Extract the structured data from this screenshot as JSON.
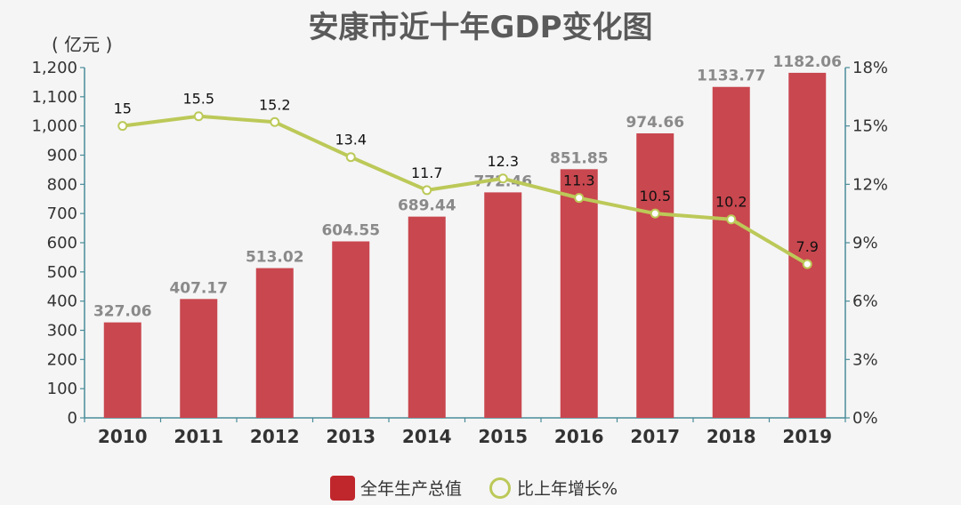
{
  "chart_data": {
    "type": "bar",
    "title": "安康市近十年GDP变化图",
    "unit_label": "( 亿元 )",
    "categories": [
      "2010",
      "2011",
      "2012",
      "2013",
      "2014",
      "2015",
      "2016",
      "2017",
      "2018",
      "2019"
    ],
    "series": [
      {
        "name": "全年生产总值",
        "type": "bar",
        "axis": "left",
        "color": "#c9474f",
        "values": [
          327.06,
          407.17,
          513.02,
          604.55,
          689.44,
          772.46,
          851.85,
          974.66,
          1133.77,
          1182.06
        ],
        "labels": [
          "327.06",
          "407.17",
          "513.02",
          "604.55",
          "689.44",
          "772.46",
          "851.85",
          "974.66",
          "1133.77",
          "1182.06"
        ]
      },
      {
        "name": "比上年增长%",
        "type": "line",
        "axis": "right",
        "color": "#bcc958",
        "values": [
          15,
          15.5,
          15.2,
          13.4,
          11.7,
          12.3,
          11.3,
          10.5,
          10.2,
          7.9
        ],
        "labels": [
          "15",
          "15.5",
          "15.2",
          "13.4",
          "11.7",
          "12.3",
          "11.3",
          "10.5",
          "10.2",
          "7.9"
        ]
      }
    ],
    "y_left": {
      "range": [
        0,
        1200
      ],
      "ticks": [
        0,
        100,
        200,
        300,
        400,
        500,
        600,
        700,
        800,
        900,
        1000,
        1100,
        1200
      ],
      "tick_labels": [
        "0",
        "100",
        "200",
        "300",
        "400",
        "500",
        "600",
        "700",
        "800",
        "900",
        "1,000",
        "1,100",
        "1,200"
      ]
    },
    "y_right": {
      "range": [
        0,
        18
      ],
      "ticks": [
        0,
        3,
        6,
        9,
        12,
        15,
        18
      ],
      "tick_labels": [
        "0%",
        "3%",
        "6%",
        "9%",
        "12%",
        "15%",
        "18%"
      ]
    },
    "grid": false,
    "legend_position": "bottom-center"
  }
}
